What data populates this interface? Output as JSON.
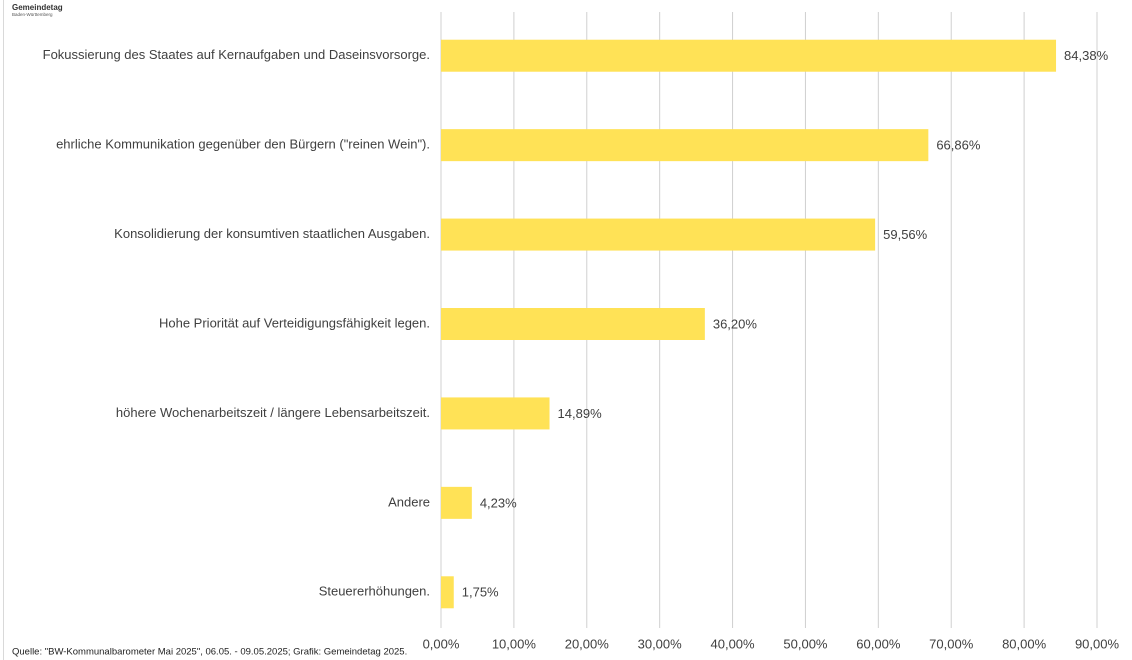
{
  "logo": {
    "name": "Gemeindetag",
    "region": "Baden-Württemberg"
  },
  "chart_data": {
    "type": "bar",
    "categories": [
      "Fokussierung des Staates auf Kernaufgaben und Daseinsvorsorge.",
      "ehrliche Kommunikation gegenüber den Bürgern (\"reinen Wein\").",
      "Konsolidierung der konsumtiven staatlichen Ausgaben.",
      "Hohe Priorität auf Verteidigungsfähigkeit legen.",
      "höhere Wochenarbeitszeit / längere Lebensarbeitszeit.",
      "Andere",
      "Steuererhöhungen."
    ],
    "values": [
      84.38,
      66.86,
      59.56,
      36.2,
      14.89,
      4.23,
      1.75
    ],
    "value_labels": [
      "84,38%",
      "66,86%",
      "59,56%",
      "36,20%",
      "14,89%",
      "4,23%",
      "1,75%"
    ],
    "color": "#ffe256",
    "xlim": [
      0,
      90
    ],
    "xticks": [
      {
        "value": 0,
        "label": "0,00%"
      },
      {
        "value": 10,
        "label": "10,00%"
      },
      {
        "value": 20,
        "label": "20,00%"
      },
      {
        "value": 30,
        "label": "30,00%"
      },
      {
        "value": 40,
        "label": "40,00%"
      },
      {
        "value": 50,
        "label": "50,00%"
      },
      {
        "value": 60,
        "label": "60,00%"
      },
      {
        "value": 70,
        "label": "70,00%"
      },
      {
        "value": 80,
        "label": "80,00%"
      },
      {
        "value": 90,
        "label": "90,00%"
      }
    ],
    "grid": true,
    "source": "Quelle: \"BW-Kommunalbarometer Mai 2025\", 06.05. - 09.05.2025; Grafik: Gemeindetag 2025."
  }
}
